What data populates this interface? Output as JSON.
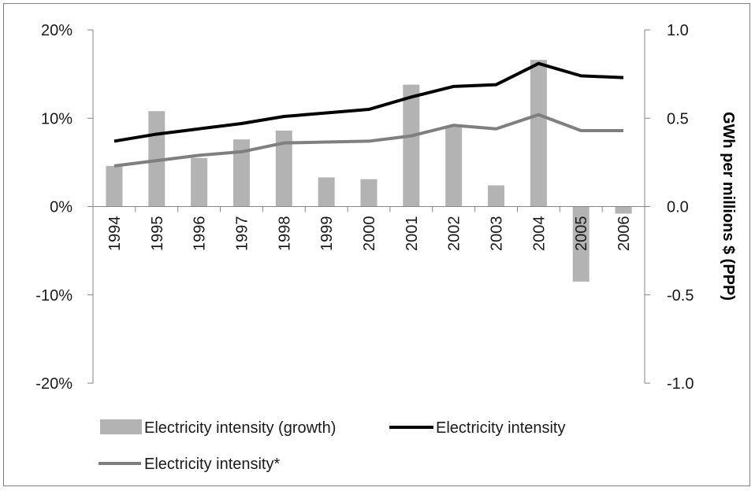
{
  "chart_data": {
    "type": "bar+line",
    "categories": [
      "1994",
      "1995",
      "1996",
      "1997",
      "1998",
      "1999",
      "2000",
      "2001",
      "2002",
      "2003",
      "2004",
      "2005",
      "2006"
    ],
    "left_axis": {
      "ticks": [
        20,
        10,
        0,
        -10,
        -20
      ],
      "tick_labels": [
        "20%",
        "10%",
        "0%",
        "-10%",
        "-20%"
      ],
      "ylim": [
        -20,
        20
      ]
    },
    "right_axis": {
      "label": "GWh per millions $ (PPP)",
      "ticks": [
        1.0,
        0.5,
        0.0,
        -0.5,
        -1.0
      ],
      "tick_labels": [
        "1.0",
        "0.5",
        "0.0",
        "-0.5",
        "-1.0"
      ],
      "ylim": [
        -1.0,
        1.0
      ]
    },
    "series": [
      {
        "name": "Electricity intensity (growth)",
        "type": "bar",
        "axis": "left",
        "color": "#b3b3b3",
        "values": [
          4.6,
          10.8,
          5.5,
          7.6,
          8.6,
          3.3,
          3.1,
          13.8,
          9.0,
          2.4,
          16.6,
          -8.5,
          -0.8
        ]
      },
      {
        "name": "Electricity intensity",
        "type": "line",
        "axis": "right",
        "color": "#000000",
        "values": [
          0.37,
          0.41,
          0.44,
          0.47,
          0.51,
          0.53,
          0.55,
          0.62,
          0.68,
          0.69,
          0.81,
          0.74,
          0.73
        ]
      },
      {
        "name": "Electricity intensity*",
        "type": "line",
        "axis": "right",
        "color": "#7f7f7f",
        "values": [
          0.23,
          0.26,
          0.29,
          0.31,
          0.36,
          0.365,
          0.37,
          0.4,
          0.46,
          0.44,
          0.52,
          0.43,
          0.43
        ]
      }
    ],
    "grid": false,
    "legend_position": "bottom"
  }
}
